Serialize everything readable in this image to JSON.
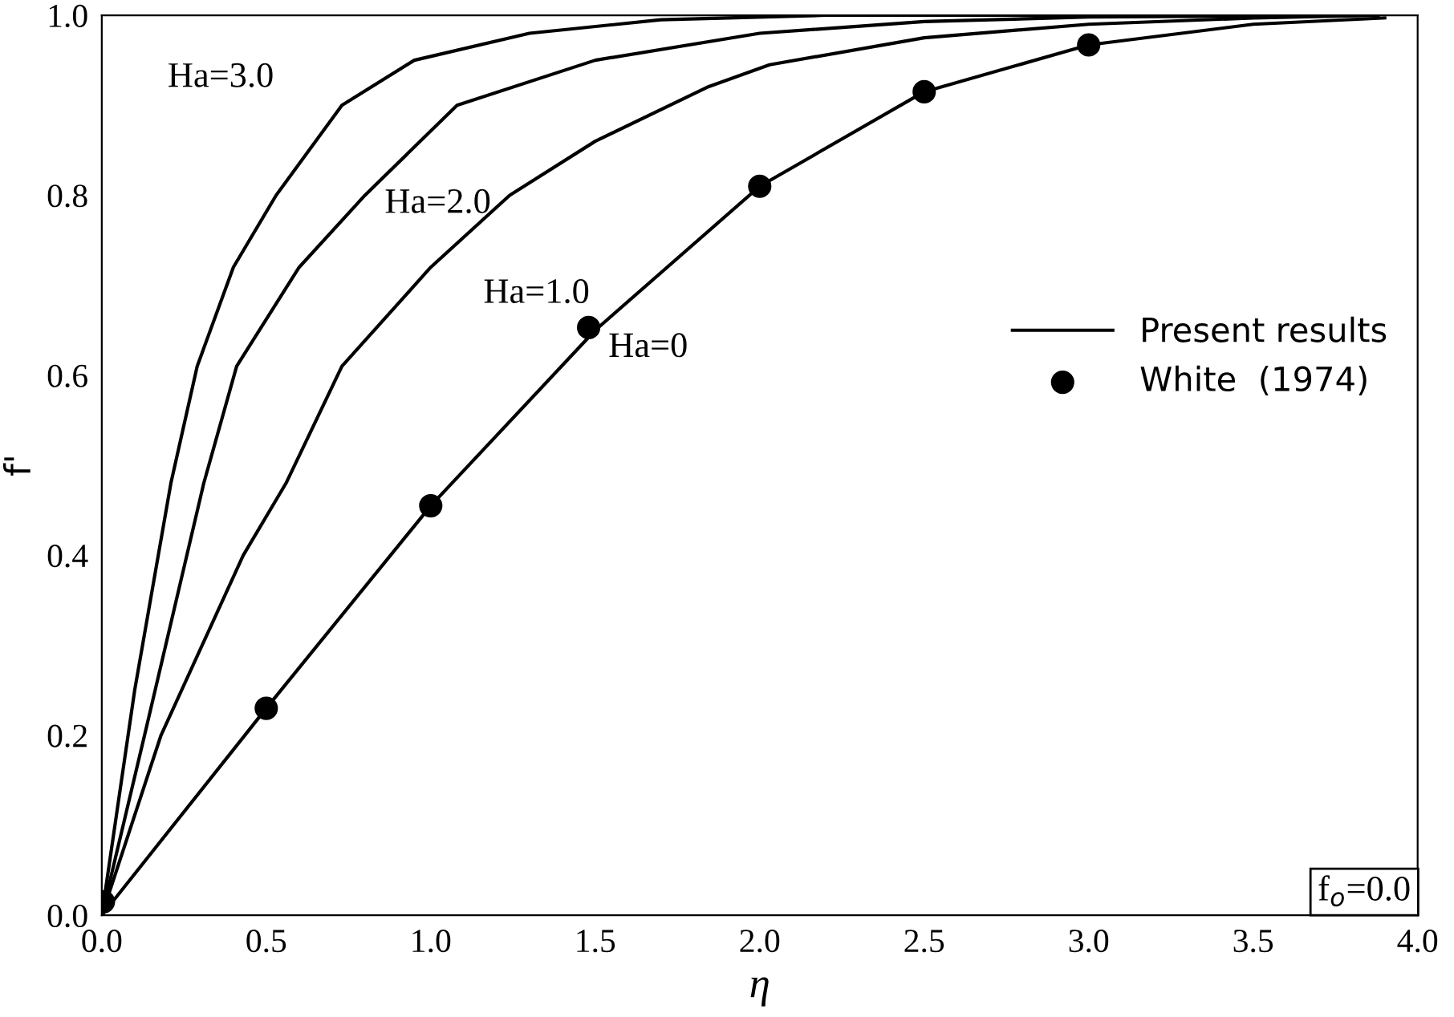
{
  "chart_data": {
    "type": "line",
    "xlabel": "η",
    "ylabel": "f'",
    "xlim": [
      0,
      4
    ],
    "ylim": [
      0,
      1
    ],
    "xticks": [
      {
        "value": 0,
        "label": "0.0"
      },
      0.5,
      {
        "value": 1,
        "label": "1.0"
      },
      1.5,
      {
        "value": 2,
        "label": "2.0"
      },
      2.5,
      {
        "value": 3,
        "label": "3.0"
      },
      3.5,
      {
        "value": 4,
        "label": "4.0"
      }
    ],
    "yticks": [
      {
        "value": 0,
        "label": "0.0"
      },
      0.2,
      0.4,
      0.6,
      0.8,
      {
        "value": 1,
        "label": "1.0"
      }
    ],
    "grid": false,
    "legend": "right",
    "line_style": "solid",
    "series": [
      {
        "name": "Present results",
        "color": "#000000",
        "marker": "none",
        "x": [
          0,
          0.5,
          1.0,
          1.5,
          2.0,
          2.5,
          3.0,
          3.5,
          3.9
        ],
        "values": [
          0,
          0.23,
          0.455,
          0.65,
          0.81,
          0.915,
          0.967,
          0.99,
          0.997
        ]
      },
      {
        "color": "#000000",
        "marker": "none",
        "x": [
          0,
          0.18,
          0.43,
          0.56,
          0.73,
          1.0,
          1.24,
          1.5,
          1.84,
          2.03,
          2.5,
          3.0,
          3.5,
          3.88
        ],
        "values": [
          0,
          0.2,
          0.4,
          0.48,
          0.61,
          0.72,
          0.8,
          0.86,
          0.92,
          0.945,
          0.975,
          0.99,
          0.997,
          1.0
        ]
      },
      {
        "color": "#000000",
        "marker": "none",
        "x": [
          0,
          0.13,
          0.31,
          0.41,
          0.6,
          0.8,
          1.08,
          1.5,
          2.0,
          2.5,
          3.0,
          3.87
        ],
        "values": [
          0,
          0.2,
          0.48,
          0.61,
          0.72,
          0.8,
          0.9,
          0.95,
          0.98,
          0.993,
          0.998,
          1.0
        ]
      },
      {
        "color": "#000000",
        "marker": "none",
        "x": [
          0,
          0.1,
          0.21,
          0.29,
          0.4,
          0.53,
          0.73,
          0.95,
          1.3,
          1.7,
          2.2,
          3.86
        ],
        "values": [
          0,
          0.25,
          0.48,
          0.61,
          0.72,
          0.8,
          0.9,
          0.95,
          0.98,
          0.995,
          1.0,
          1.0
        ]
      },
      {
        "name": "White  (1974)",
        "type": "scatter",
        "color": "#000000",
        "marker": "circle",
        "x": [
          0.005,
          0.5,
          1.0,
          1.48,
          2.0,
          2.5,
          3.0
        ],
        "values": [
          0.015,
          0.23,
          0.455,
          0.653,
          0.81,
          0.915,
          0.967
        ]
      }
    ],
    "annotations": [
      "Ha=3.0",
      "Ha=2.0",
      "Ha=1.0",
      "Ha=0",
      "f$_{o}$=0.0"
    ]
  }
}
